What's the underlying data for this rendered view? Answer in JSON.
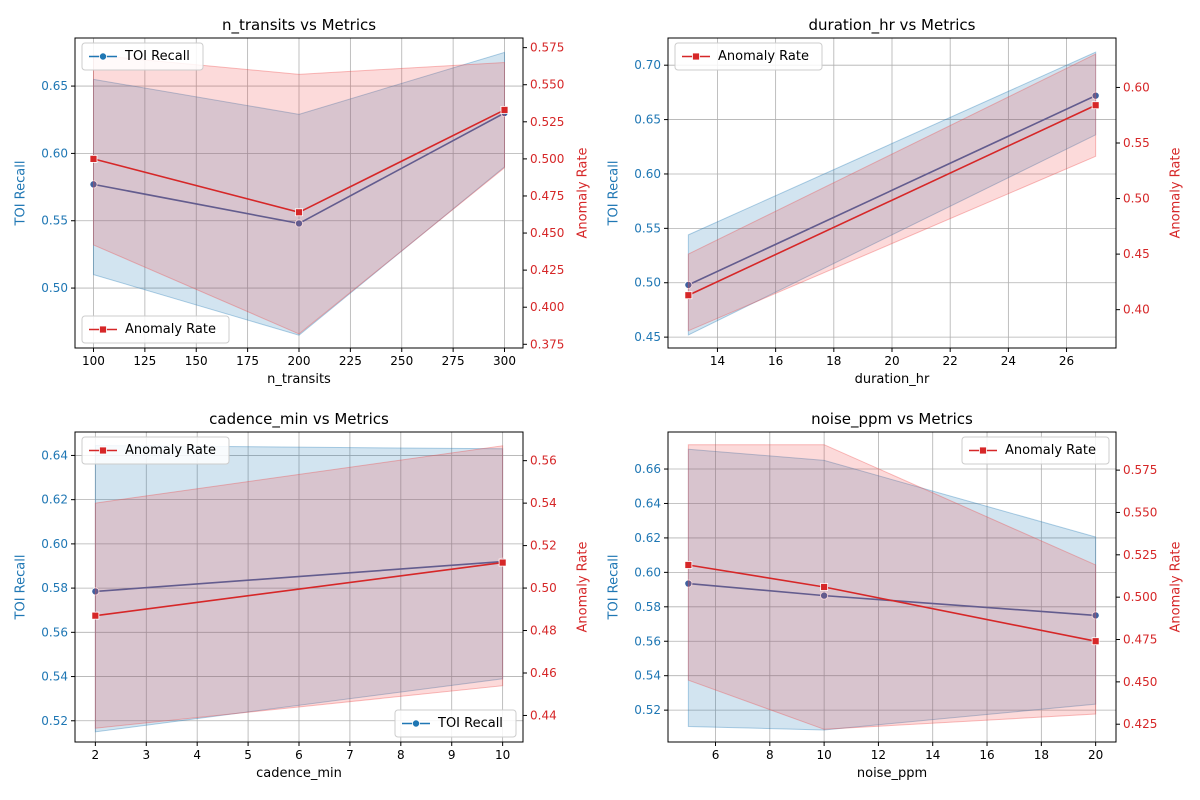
{
  "colors": {
    "recall": "#1f77b4",
    "recall_line": "#4062a0",
    "anomaly": "#d62728",
    "grid": "#b0b0b0",
    "axis": "#000000",
    "recall_band": "#1f77b4",
    "anomaly_band": "#ef4444"
  },
  "chart_data": [
    {
      "type": "line",
      "title": "n_transits vs Metrics",
      "xlabel": "n_transits",
      "ylabel_left": "TOI Recall",
      "ylabel_right": "Anomaly Rate",
      "x": [
        100,
        200,
        300
      ],
      "xlim": [
        91,
        309
      ],
      "xticks": [
        "100",
        "125",
        "150",
        "175",
        "200",
        "225",
        "250",
        "275",
        "300"
      ],
      "ylim_left": [
        0.4555,
        0.6857
      ],
      "yticks_left": [
        "0.50",
        "0.55",
        "0.60",
        "0.65"
      ],
      "ylim_right": [
        0.3725,
        0.5815
      ],
      "yticks_right": [
        "0.375",
        "0.400",
        "0.425",
        "0.450",
        "0.475",
        "0.500",
        "0.525",
        "0.550",
        "0.575"
      ],
      "series": [
        {
          "name": "TOI Recall",
          "axis": "left",
          "marker": "circle",
          "values": [
            0.577,
            0.548,
            0.63
          ],
          "band_low": [
            0.51,
            0.465,
            0.59
          ],
          "band_high": [
            0.655,
            0.629,
            0.675
          ]
        },
        {
          "name": "Anomaly Rate",
          "axis": "right",
          "marker": "square",
          "values": [
            0.5,
            0.464,
            0.533
          ],
          "band_low": [
            0.442,
            0.382,
            0.494
          ],
          "band_high": [
            0.57,
            0.557,
            0.565
          ]
        }
      ],
      "legend": [
        {
          "series": "TOI Recall",
          "label": "TOI Recall",
          "placement": "upper-left"
        },
        {
          "series": "Anomaly Rate",
          "label": "Anomaly Rate",
          "placement": "lower-left"
        }
      ]
    },
    {
      "type": "line",
      "title": "duration_hr vs Metrics",
      "xlabel": "duration_hr",
      "ylabel_left": "TOI Recall",
      "ylabel_right": "Anomaly Rate",
      "x": [
        13,
        27
      ],
      "xlim": [
        12.3,
        27.7
      ],
      "xticks": [
        "14",
        "16",
        "18",
        "20",
        "22",
        "24",
        "26"
      ],
      "ylim_left": [
        0.44,
        0.725
      ],
      "yticks_left": [
        "0.45",
        "0.50",
        "0.55",
        "0.60",
        "0.65",
        "0.70"
      ],
      "ylim_right": [
        0.3655,
        0.6445
      ],
      "yticks_right": [
        "0.40",
        "0.45",
        "0.50",
        "0.55",
        "0.60"
      ],
      "series": [
        {
          "name": "TOI Recall",
          "axis": "left",
          "marker": "circle",
          "values": [
            0.498,
            0.672
          ],
          "band_low": [
            0.452,
            0.636
          ],
          "band_high": [
            0.544,
            0.712
          ]
        },
        {
          "name": "Anomaly Rate",
          "axis": "right",
          "marker": "square",
          "values": [
            0.413,
            0.584
          ],
          "band_low": [
            0.381,
            0.538
          ],
          "band_high": [
            0.45,
            0.63
          ]
        }
      ],
      "legend": [
        {
          "series": "Anomaly Rate",
          "label": "Anomaly Rate",
          "placement": "upper-left"
        }
      ]
    },
    {
      "type": "line",
      "title": "cadence_min vs Metrics",
      "xlabel": "cadence_min",
      "ylabel_left": "TOI Recall",
      "ylabel_right": "Anomaly Rate",
      "x": [
        2,
        10
      ],
      "xlim": [
        1.6,
        10.4
      ],
      "xticks": [
        "2",
        "3",
        "4",
        "5",
        "6",
        "7",
        "8",
        "9",
        "10"
      ],
      "ylim_left": [
        0.5104,
        0.6506
      ],
      "yticks_left": [
        "0.52",
        "0.54",
        "0.56",
        "0.58",
        "0.60",
        "0.62",
        "0.64"
      ],
      "ylim_right": [
        0.4275,
        0.5735
      ],
      "yticks_right": [
        "0.44",
        "0.46",
        "0.48",
        "0.50",
        "0.52",
        "0.54",
        "0.56"
      ],
      "series": [
        {
          "name": "TOI Recall",
          "axis": "left",
          "marker": "circle",
          "values": [
            0.5785,
            0.592
          ],
          "band_low": [
            0.515,
            0.539
          ],
          "band_high": [
            0.6445,
            0.643
          ]
        },
        {
          "name": "Anomaly Rate",
          "axis": "right",
          "marker": "square",
          "values": [
            0.487,
            0.512
          ],
          "band_low": [
            0.434,
            0.454
          ],
          "band_high": [
            0.54,
            0.567
          ]
        }
      ],
      "legend": [
        {
          "series": "Anomaly Rate",
          "label": "Anomaly Rate",
          "placement": "upper-left"
        },
        {
          "series": "TOI Recall",
          "label": "TOI Recall",
          "placement": "lower-right"
        }
      ]
    },
    {
      "type": "line",
      "title": "noise_ppm vs Metrics",
      "xlabel": "noise_ppm",
      "ylabel_left": "TOI Recall",
      "ylabel_right": "Anomaly Rate",
      "x": [
        5,
        10,
        20
      ],
      "xlim": [
        4.25,
        20.75
      ],
      "xticks": [
        "6",
        "8",
        "10",
        "12",
        "14",
        "16",
        "18",
        "20"
      ],
      "ylim_left": [
        0.5015,
        0.6815
      ],
      "yticks_left": [
        "0.52",
        "0.54",
        "0.56",
        "0.58",
        "0.60",
        "0.62",
        "0.64",
        "0.66"
      ],
      "ylim_right": [
        0.4145,
        0.5975
      ],
      "yticks_right": [
        "0.425",
        "0.450",
        "0.475",
        "0.500",
        "0.525",
        "0.550",
        "0.575"
      ],
      "series": [
        {
          "name": "TOI Recall",
          "axis": "left",
          "marker": "circle",
          "values": [
            0.5935,
            0.5865,
            0.575
          ],
          "band_low": [
            0.5105,
            0.5085,
            0.5235
          ],
          "band_high": [
            0.6715,
            0.665,
            0.6205
          ]
        },
        {
          "name": "Anomaly Rate",
          "axis": "right",
          "marker": "square",
          "values": [
            0.519,
            0.506,
            0.474
          ],
          "band_low": [
            0.451,
            0.422,
            0.431
          ],
          "band_high": [
            0.59,
            0.59,
            0.519
          ]
        }
      ],
      "legend": [
        {
          "series": "Anomaly Rate",
          "label": "Anomaly Rate",
          "placement": "upper-right"
        }
      ]
    }
  ]
}
